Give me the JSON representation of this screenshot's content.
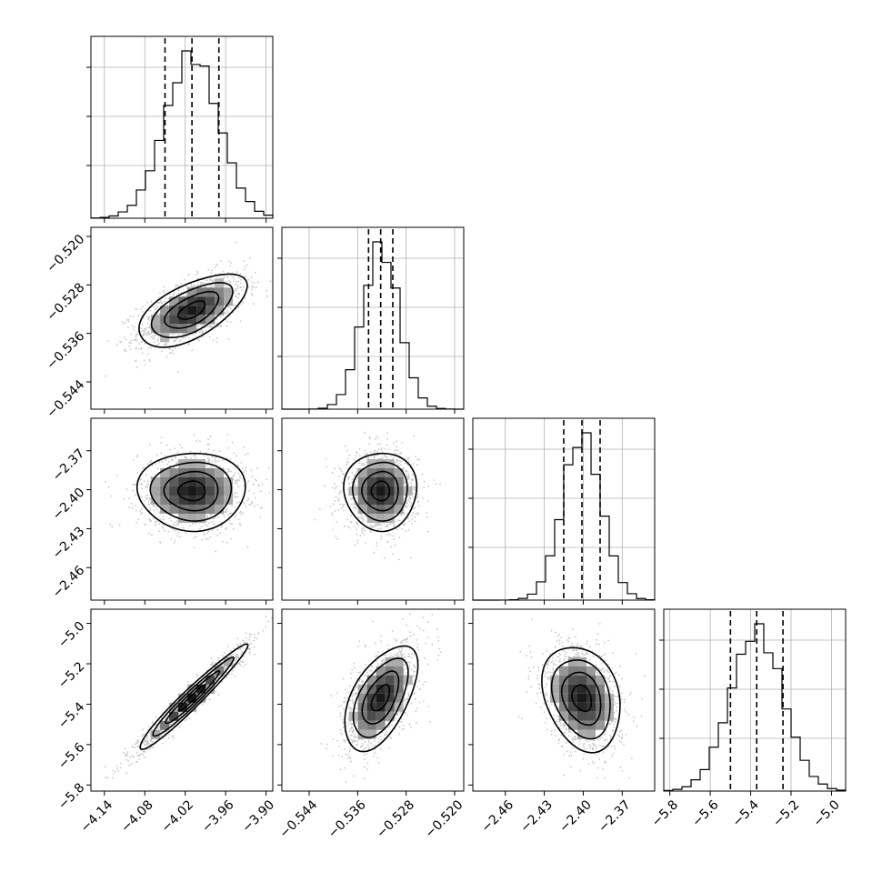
{
  "chart_data": {
    "type": "corner",
    "title": "",
    "params": [
      {
        "range": [
          -4.16,
          -3.89
        ],
        "ticks": [
          "−4.14",
          "−4.08",
          "−4.02",
          "−3.96",
          "−3.90"
        ],
        "tick_values": [
          -4.14,
          -4.08,
          -4.02,
          -3.96,
          -3.9
        ],
        "quantiles": [
          -4.05,
          -4.01,
          -3.97
        ],
        "mean": -4.01,
        "std": 0.04
      },
      {
        "range": [
          -0.5485,
          -0.5185
        ],
        "ticks": [
          "−0.520",
          "−0.528",
          "−0.536",
          "−0.544"
        ],
        "x_ticks": [
          "−0.544",
          "−0.536",
          "−0.528",
          "−0.520"
        ],
        "tick_values": [
          -0.52,
          -0.528,
          -0.536,
          -0.544
        ],
        "x_tick_values": [
          -0.544,
          -0.536,
          -0.528,
          -0.52
        ],
        "quantiles": [
          -0.5342,
          -0.5322,
          -0.5302
        ],
        "mean": -0.5322,
        "std": 0.003
      },
      {
        "range": [
          -2.485,
          -2.345
        ],
        "ticks": [
          "−2.37",
          "−2.40",
          "−2.43",
          "−2.46"
        ],
        "x_ticks": [
          "−2.46",
          "−2.43",
          "−2.40",
          "−2.37"
        ],
        "tick_values": [
          -2.37,
          -2.4,
          -2.43,
          -2.46
        ],
        "x_tick_values": [
          -2.46,
          -2.43,
          -2.4,
          -2.37
        ],
        "quantiles": [
          -2.415,
          -2.401,
          -2.387
        ],
        "mean": -2.401,
        "std": 0.015
      },
      {
        "range": [
          -5.83,
          -4.93
        ],
        "ticks": [
          "−5.0",
          "−5.2",
          "−5.4",
          "−5.6",
          "−5.8"
        ],
        "x_ticks": [
          "−5.8",
          "−5.6",
          "−5.4",
          "−5.2",
          "−5.0"
        ],
        "tick_values": [
          -5.0,
          -5.2,
          -5.4,
          -5.6,
          -5.8
        ],
        "x_tick_values": [
          -5.8,
          -5.6,
          -5.4,
          -5.2,
          -5.0
        ],
        "quantiles": [
          -5.5,
          -5.37,
          -5.24
        ],
        "mean": -5.37,
        "std": 0.13
      }
    ],
    "correlations": {
      "1-0": 0.6,
      "2-0": 0.0,
      "2-1": 0.0,
      "3-0": 0.97,
      "3-1": 0.55,
      "3-2": -0.25
    },
    "grid": true,
    "samples_shown": true
  }
}
